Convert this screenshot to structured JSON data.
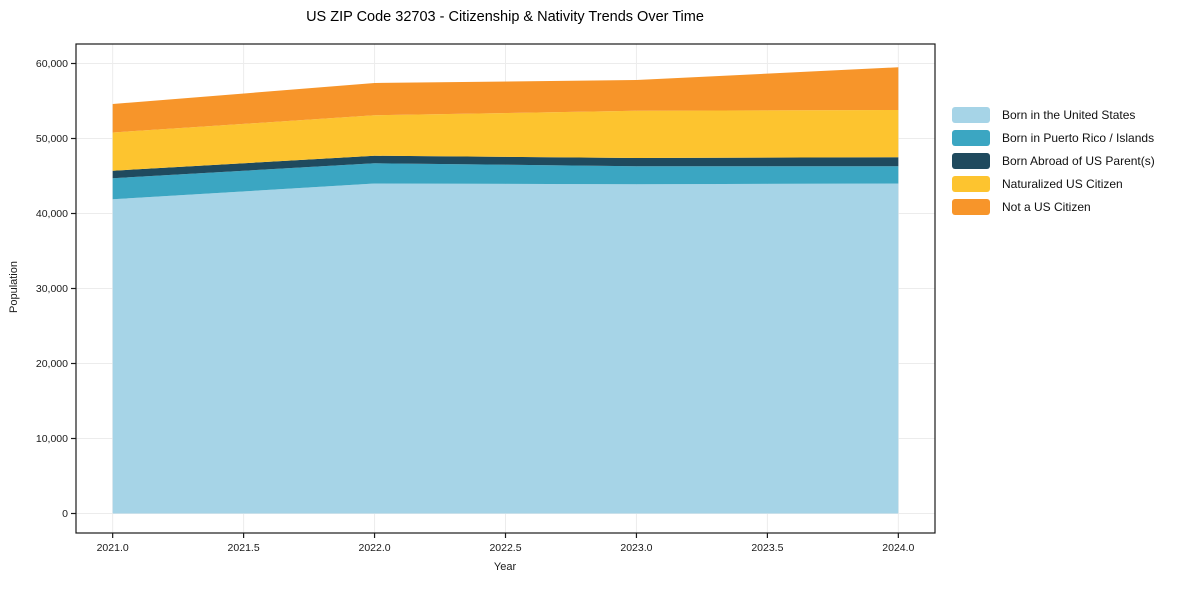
{
  "page": {
    "background": "#ffffff"
  },
  "chart_data": {
    "type": "area",
    "stacked": true,
    "title": "US ZIP Code 32703 - Citizenship & Nativity Trends Over Time",
    "xlabel": "Year",
    "ylabel": "Population",
    "x": [
      2021,
      2022,
      2023,
      2024
    ],
    "series": [
      {
        "name": "Born in the United States",
        "color": "#a6d4e7",
        "values": [
          41900,
          44000,
          43900,
          44000
        ]
      },
      {
        "name": "Born in Puerto Rico / Islands",
        "color": "#3ba6c2",
        "values": [
          2800,
          2700,
          2400,
          2300
        ]
      },
      {
        "name": "Born Abroad of US Parent(s)",
        "color": "#1f4a5e",
        "values": [
          1000,
          1000,
          1100,
          1200
        ]
      },
      {
        "name": "Naturalized US Citizen",
        "color": "#fdc42f",
        "values": [
          5100,
          5400,
          6300,
          6300
        ]
      },
      {
        "name": "Not a US Citizen",
        "color": "#f7952a",
        "values": [
          3800,
          4300,
          4100,
          5700
        ]
      }
    ],
    "xticks": [
      2021.0,
      2021.5,
      2022.0,
      2022.5,
      2023.0,
      2023.5,
      2024.0
    ],
    "xtick_labels": [
      "2021.0",
      "2021.5",
      "2022.0",
      "2022.5",
      "2023.0",
      "2023.5",
      "2024.0"
    ],
    "yticks": [
      0,
      10000,
      20000,
      30000,
      40000,
      50000,
      60000
    ],
    "ytick_labels": [
      "0",
      "10,000",
      "20,000",
      "30,000",
      "40,000",
      "50,000",
      "60,000"
    ],
    "xlim": [
      2020.86,
      2024.14
    ],
    "ylim": [
      -2600,
      62600
    ],
    "grid": true,
    "grid_color": "#ececec",
    "frame_color": "#1a1a1a",
    "legend_position": "right-of-plot"
  }
}
